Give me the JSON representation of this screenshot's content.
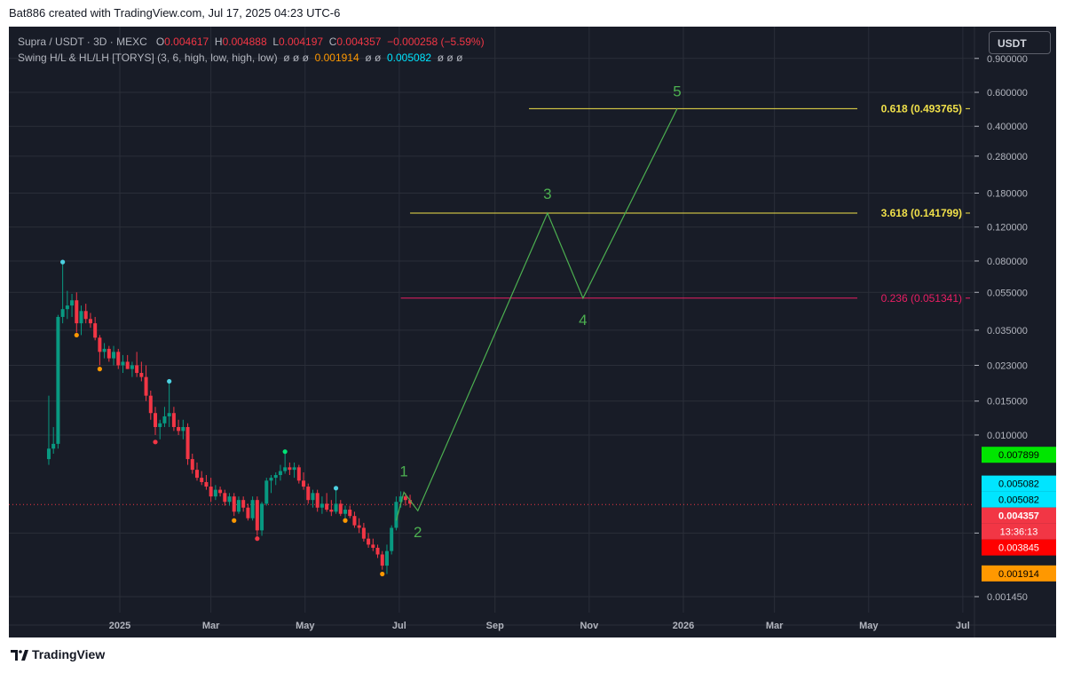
{
  "header": {
    "credit": "Bat886 created with TradingView.com, Jul 17, 2025 04:23 UTC-6"
  },
  "legend": {
    "symbol": "Supra / USDT · 3D · MEXC",
    "o_label": "O",
    "o_value": "0.004617",
    "h_label": "H",
    "h_value": "0.004888",
    "l_label": "L",
    "l_value": "0.004197",
    "c_label": "C",
    "c_value": "0.004357",
    "change": "−0.000258 (−5.59%)",
    "indicator": "Swing H/L & HL/LH [TORYS] (3, 6, high, low, high, low)",
    "ind_empty1": "ø ø ø",
    "ind_val1": "0.001914",
    "ind_empty2": "ø ø",
    "ind_val2": "0.005082",
    "ind_empty3": "ø ø ø"
  },
  "unit_button": "USDT",
  "footer": {
    "brand": "TradingView"
  },
  "colors": {
    "background": "#181c27",
    "grid": "#2a2e39",
    "up": "#089981",
    "down": "#f23645",
    "wave": "#4caf50",
    "fib_yellow": "#f0e04a",
    "fib_pink": "#e91e63",
    "swing_cyan": "#4dd0e1",
    "swing_orange": "#ff9800",
    "swing_green": "#00e676"
  },
  "chart_data": {
    "type": "candlestick",
    "y_scale": "log",
    "ylim": [
      0.0013,
      1.0
    ],
    "y_ticks": [
      "0.900000",
      "0.600000",
      "0.400000",
      "0.280000",
      "0.180000",
      "0.120000",
      "0.080000",
      "0.055000",
      "0.035000",
      "0.023000",
      "0.015000",
      "0.010000",
      "0.003100",
      "0.001450"
    ],
    "x_range": [
      "2024-11-01",
      "2025-07-22"
    ],
    "x_ticks": [
      "2025",
      "Mar",
      "May",
      "Jul",
      "Sep",
      "Nov",
      "2026",
      "Mar",
      "May",
      "Jul"
    ],
    "candles": [
      {
        "d": "2024-11-16",
        "o": 0.0075,
        "h": 0.016,
        "l": 0.007,
        "c": 0.0085
      },
      {
        "d": "2024-11-19",
        "o": 0.0085,
        "h": 0.011,
        "l": 0.008,
        "c": 0.009
      },
      {
        "d": "2024-11-22",
        "o": 0.009,
        "h": 0.042,
        "l": 0.0085,
        "c": 0.041
      },
      {
        "d": "2024-11-25",
        "o": 0.041,
        "h": 0.079,
        "l": 0.038,
        "c": 0.045
      },
      {
        "d": "2024-11-28",
        "o": 0.045,
        "h": 0.056,
        "l": 0.04,
        "c": 0.047
      },
      {
        "d": "2024-12-01",
        "o": 0.047,
        "h": 0.054,
        "l": 0.041,
        "c": 0.05
      },
      {
        "d": "2024-12-04",
        "o": 0.05,
        "h": 0.055,
        "l": 0.034,
        "c": 0.038
      },
      {
        "d": "2024-12-07",
        "o": 0.038,
        "h": 0.047,
        "l": 0.033,
        "c": 0.044
      },
      {
        "d": "2024-12-10",
        "o": 0.044,
        "h": 0.048,
        "l": 0.038,
        "c": 0.04
      },
      {
        "d": "2024-12-13",
        "o": 0.04,
        "h": 0.043,
        "l": 0.036,
        "c": 0.038
      },
      {
        "d": "2024-12-16",
        "o": 0.038,
        "h": 0.041,
        "l": 0.031,
        "c": 0.032
      },
      {
        "d": "2024-12-19",
        "o": 0.032,
        "h": 0.033,
        "l": 0.023,
        "c": 0.027
      },
      {
        "d": "2024-12-22",
        "o": 0.027,
        "h": 0.03,
        "l": 0.025,
        "c": 0.028
      },
      {
        "d": "2024-12-25",
        "o": 0.028,
        "h": 0.029,
        "l": 0.024,
        "c": 0.025
      },
      {
        "d": "2024-12-28",
        "o": 0.025,
        "h": 0.029,
        "l": 0.023,
        "c": 0.027
      },
      {
        "d": "2024-12-31",
        "o": 0.027,
        "h": 0.028,
        "l": 0.022,
        "c": 0.023
      },
      {
        "d": "2025-01-03",
        "o": 0.023,
        "h": 0.026,
        "l": 0.021,
        "c": 0.024
      },
      {
        "d": "2025-01-06",
        "o": 0.024,
        "h": 0.026,
        "l": 0.022,
        "c": 0.022
      },
      {
        "d": "2025-01-09",
        "o": 0.022,
        "h": 0.024,
        "l": 0.02,
        "c": 0.023
      },
      {
        "d": "2025-01-12",
        "o": 0.023,
        "h": 0.027,
        "l": 0.02,
        "c": 0.021
      },
      {
        "d": "2025-01-15",
        "o": 0.021,
        "h": 0.024,
        "l": 0.019,
        "c": 0.02
      },
      {
        "d": "2025-01-18",
        "o": 0.02,
        "h": 0.023,
        "l": 0.015,
        "c": 0.016
      },
      {
        "d": "2025-01-21",
        "o": 0.016,
        "h": 0.017,
        "l": 0.012,
        "c": 0.013
      },
      {
        "d": "2025-01-24",
        "o": 0.013,
        "h": 0.014,
        "l": 0.01,
        "c": 0.011
      },
      {
        "d": "2025-01-27",
        "o": 0.011,
        "h": 0.012,
        "l": 0.0095,
        "c": 0.0115
      },
      {
        "d": "2025-01-30",
        "o": 0.0115,
        "h": 0.014,
        "l": 0.011,
        "c": 0.0125
      },
      {
        "d": "2025-02-02",
        "o": 0.0125,
        "h": 0.019,
        "l": 0.011,
        "c": 0.013
      },
      {
        "d": "2025-02-05",
        "o": 0.013,
        "h": 0.014,
        "l": 0.0105,
        "c": 0.011
      },
      {
        "d": "2025-02-08",
        "o": 0.011,
        "h": 0.012,
        "l": 0.01,
        "c": 0.0105
      },
      {
        "d": "2025-02-11",
        "o": 0.0105,
        "h": 0.012,
        "l": 0.0095,
        "c": 0.011
      },
      {
        "d": "2025-02-14",
        "o": 0.011,
        "h": 0.0115,
        "l": 0.007,
        "c": 0.0075
      },
      {
        "d": "2025-02-17",
        "o": 0.0075,
        "h": 0.008,
        "l": 0.0063,
        "c": 0.0066
      },
      {
        "d": "2025-02-20",
        "o": 0.0066,
        "h": 0.0072,
        "l": 0.0058,
        "c": 0.006
      },
      {
        "d": "2025-02-23",
        "o": 0.006,
        "h": 0.0065,
        "l": 0.0055,
        "c": 0.0057
      },
      {
        "d": "2025-02-26",
        "o": 0.0057,
        "h": 0.0062,
        "l": 0.0052,
        "c": 0.0054
      },
      {
        "d": "2025-03-01",
        "o": 0.0054,
        "h": 0.006,
        "l": 0.0045,
        "c": 0.0048
      },
      {
        "d": "2025-03-04",
        "o": 0.0048,
        "h": 0.0055,
        "l": 0.0046,
        "c": 0.0052
      },
      {
        "d": "2025-03-07",
        "o": 0.0052,
        "h": 0.0054,
        "l": 0.0048,
        "c": 0.005
      },
      {
        "d": "2025-03-10",
        "o": 0.005,
        "h": 0.0052,
        "l": 0.0043,
        "c": 0.0045
      },
      {
        "d": "2025-03-13",
        "o": 0.0045,
        "h": 0.005,
        "l": 0.0043,
        "c": 0.0048
      },
      {
        "d": "2025-03-16",
        "o": 0.0048,
        "h": 0.005,
        "l": 0.0038,
        "c": 0.004
      },
      {
        "d": "2025-03-19",
        "o": 0.004,
        "h": 0.0048,
        "l": 0.0039,
        "c": 0.0046
      },
      {
        "d": "2025-03-22",
        "o": 0.0046,
        "h": 0.0048,
        "l": 0.004,
        "c": 0.0042
      },
      {
        "d": "2025-03-25",
        "o": 0.0042,
        "h": 0.0044,
        "l": 0.0036,
        "c": 0.0037
      },
      {
        "d": "2025-03-28",
        "o": 0.0037,
        "h": 0.0048,
        "l": 0.0036,
        "c": 0.0046
      },
      {
        "d": "2025-03-31",
        "o": 0.0046,
        "h": 0.0048,
        "l": 0.003,
        "c": 0.0032
      },
      {
        "d": "2025-04-03",
        "o": 0.0032,
        "h": 0.0045,
        "l": 0.003,
        "c": 0.0044
      },
      {
        "d": "2025-04-06",
        "o": 0.0044,
        "h": 0.006,
        "l": 0.0043,
        "c": 0.0058
      },
      {
        "d": "2025-04-09",
        "o": 0.0058,
        "h": 0.0062,
        "l": 0.005,
        "c": 0.006
      },
      {
        "d": "2025-04-12",
        "o": 0.006,
        "h": 0.0064,
        "l": 0.0055,
        "c": 0.0062
      },
      {
        "d": "2025-04-15",
        "o": 0.0062,
        "h": 0.007,
        "l": 0.0058,
        "c": 0.0065
      },
      {
        "d": "2025-04-18",
        "o": 0.0065,
        "h": 0.008,
        "l": 0.0063,
        "c": 0.0068
      },
      {
        "d": "2025-04-21",
        "o": 0.0068,
        "h": 0.0072,
        "l": 0.0062,
        "c": 0.0066
      },
      {
        "d": "2025-04-24",
        "o": 0.0066,
        "h": 0.0072,
        "l": 0.006,
        "c": 0.0068
      },
      {
        "d": "2025-04-27",
        "o": 0.0068,
        "h": 0.007,
        "l": 0.0056,
        "c": 0.0058
      },
      {
        "d": "2025-04-30",
        "o": 0.0058,
        "h": 0.0064,
        "l": 0.0052,
        "c": 0.0054
      },
      {
        "d": "2025-05-03",
        "o": 0.0054,
        "h": 0.0056,
        "l": 0.0044,
        "c": 0.0046
      },
      {
        "d": "2025-05-06",
        "o": 0.0046,
        "h": 0.0052,
        "l": 0.0042,
        "c": 0.005
      },
      {
        "d": "2025-05-09",
        "o": 0.005,
        "h": 0.0052,
        "l": 0.004,
        "c": 0.0042
      },
      {
        "d": "2025-05-12",
        "o": 0.0042,
        "h": 0.0048,
        "l": 0.0039,
        "c": 0.0044
      },
      {
        "d": "2025-05-15",
        "o": 0.0044,
        "h": 0.005,
        "l": 0.004,
        "c": 0.0041
      },
      {
        "d": "2025-05-18",
        "o": 0.0041,
        "h": 0.0046,
        "l": 0.0038,
        "c": 0.004
      },
      {
        "d": "2025-05-21",
        "o": 0.004,
        "h": 0.0052,
        "l": 0.0039,
        "c": 0.0044
      },
      {
        "d": "2025-05-24",
        "o": 0.0044,
        "h": 0.0046,
        "l": 0.0038,
        "c": 0.0039
      },
      {
        "d": "2025-05-27",
        "o": 0.0039,
        "h": 0.0043,
        "l": 0.0037,
        "c": 0.0041
      },
      {
        "d": "2025-05-30",
        "o": 0.0041,
        "h": 0.0043,
        "l": 0.0037,
        "c": 0.0038
      },
      {
        "d": "2025-06-02",
        "o": 0.0038,
        "h": 0.004,
        "l": 0.0033,
        "c": 0.0034
      },
      {
        "d": "2025-06-05",
        "o": 0.0034,
        "h": 0.0037,
        "l": 0.0031,
        "c": 0.0033
      },
      {
        "d": "2025-06-08",
        "o": 0.0033,
        "h": 0.0035,
        "l": 0.0028,
        "c": 0.0029
      },
      {
        "d": "2025-06-11",
        "o": 0.0029,
        "h": 0.0031,
        "l": 0.0026,
        "c": 0.0027
      },
      {
        "d": "2025-06-14",
        "o": 0.0027,
        "h": 0.0029,
        "l": 0.0025,
        "c": 0.0026
      },
      {
        "d": "2025-06-17",
        "o": 0.0026,
        "h": 0.0027,
        "l": 0.0023,
        "c": 0.0024
      },
      {
        "d": "2025-06-20",
        "o": 0.0024,
        "h": 0.0025,
        "l": 0.002,
        "c": 0.0021
      },
      {
        "d": "2025-06-23",
        "o": 0.0021,
        "h": 0.0027,
        "l": 0.0019,
        "c": 0.0025
      },
      {
        "d": "2025-06-26",
        "o": 0.0025,
        "h": 0.0034,
        "l": 0.0024,
        "c": 0.0033
      },
      {
        "d": "2025-06-29",
        "o": 0.0033,
        "h": 0.0048,
        "l": 0.0032,
        "c": 0.0045
      },
      {
        "d": "2025-07-02",
        "o": 0.0045,
        "h": 0.0051,
        "l": 0.0042,
        "c": 0.0048
      },
      {
        "d": "2025-07-05",
        "o": 0.0048,
        "h": 0.005,
        "l": 0.0043,
        "c": 0.0046
      },
      {
        "d": "2025-07-08",
        "o": 0.0046,
        "h": 0.0049,
        "l": 0.0042,
        "c": 0.0044
      }
    ],
    "swing_markers": [
      {
        "d": "2024-11-25",
        "v": 0.079,
        "color": "#4dd0e1"
      },
      {
        "d": "2024-12-04",
        "v": 0.033,
        "color": "#ff9800"
      },
      {
        "d": "2024-12-19",
        "v": 0.022,
        "color": "#ff9800"
      },
      {
        "d": "2025-01-24",
        "v": 0.0092,
        "color": "#f23645"
      },
      {
        "d": "2025-02-02",
        "v": 0.019,
        "color": "#4dd0e1"
      },
      {
        "d": "2025-03-16",
        "v": 0.0036,
        "color": "#ff9800"
      },
      {
        "d": "2025-03-31",
        "v": 0.0029,
        "color": "#f23645"
      },
      {
        "d": "2025-04-18",
        "v": 0.0082,
        "color": "#00e676"
      },
      {
        "d": "2025-05-21",
        "v": 0.0053,
        "color": "#4dd0e1"
      },
      {
        "d": "2025-05-27",
        "v": 0.0036,
        "color": "#ff9800"
      },
      {
        "d": "2025-06-20",
        "v": 0.0019,
        "color": "#ff9800"
      }
    ],
    "waves": [
      {
        "label": "1",
        "d": "2025-07-04",
        "v": 0.00505
      },
      {
        "label": "2",
        "d": "2025-07-13",
        "v": 0.00405
      },
      {
        "label": "3",
        "d": "2025-10-05",
        "v": 0.1418
      },
      {
        "label": "4",
        "d": "2025-10-28",
        "v": 0.0513
      },
      {
        "label": "5",
        "d": "2025-12-28",
        "v": 0.4938
      }
    ],
    "wave_start": {
      "d": "2025-06-29",
      "v": 0.0036
    },
    "fib_levels": [
      {
        "ratio_text": "0.618 (0.493765)",
        "v": 0.493765,
        "from": "2025-09-23",
        "color": "#f0e04a"
      },
      {
        "ratio_text": "3.618 (0.141799)",
        "v": 0.141799,
        "from": "2025-07-08",
        "color": "#f0e04a"
      },
      {
        "ratio_text": "0.236 (0.051341)",
        "v": 0.051341,
        "from": "2025-07-02",
        "color": "#e91e63"
      }
    ],
    "last_price": 0.004357,
    "price_badges": [
      {
        "text": "0.007899",
        "v": 0.007899,
        "bg": "#00e600",
        "fg": "#000000"
      },
      {
        "text": "0.005082",
        "v": 0.0056,
        "bg": "#00e5ff",
        "fg": "#000000"
      },
      {
        "text": "0.005082",
        "v": 0.005082,
        "bg": "#00e5ff",
        "fg": "#000000"
      },
      {
        "text": "0.004357",
        "v": 0.004357,
        "bg": "#f23645",
        "fg": "#ffffff",
        "bold": true
      },
      {
        "text": "13:36:13",
        "v": 0.00405,
        "bg": "#f23645",
        "fg": "#ffffff"
      },
      {
        "text": "0.003845",
        "v": 0.003845,
        "bg": "#ff0000",
        "fg": "#ffffff"
      },
      {
        "text": "0.001914",
        "v": 0.001914,
        "bg": "#ff9800",
        "fg": "#000000"
      }
    ]
  }
}
